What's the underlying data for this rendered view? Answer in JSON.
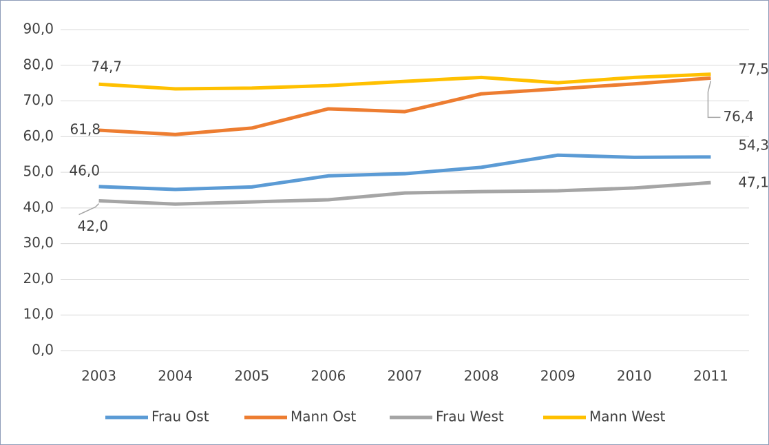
{
  "chart_data": {
    "type": "line",
    "categories": [
      "2003",
      "2004",
      "2005",
      "2006",
      "2007",
      "2008",
      "2009",
      "2010",
      "2011"
    ],
    "ylim": [
      0,
      90
    ],
    "yticks": [
      {
        "value": 0,
        "label": "0,0"
      },
      {
        "value": 10,
        "label": "10,0"
      },
      {
        "value": 20,
        "label": "20,0"
      },
      {
        "value": 30,
        "label": "30,0"
      },
      {
        "value": 40,
        "label": "40,0"
      },
      {
        "value": 50,
        "label": "50,0"
      },
      {
        "value": 60,
        "label": "60,0"
      },
      {
        "value": 70,
        "label": "70,0"
      },
      {
        "value": 80,
        "label": "80,0"
      },
      {
        "value": 90,
        "label": "90,0"
      }
    ],
    "grid": true,
    "legend": "bottom",
    "series": [
      {
        "name": "Frau Ost",
        "color": "#5b9bd5",
        "values": [
          46.0,
          45.2,
          45.9,
          49.0,
          49.6,
          51.4,
          54.8,
          54.2,
          54.3
        ],
        "value_labels": [
          "46,0",
          null,
          null,
          null,
          null,
          null,
          null,
          null,
          "54,3"
        ]
      },
      {
        "name": "Mann Ost",
        "color": "#ed7d31",
        "values": [
          61.8,
          60.6,
          62.4,
          67.8,
          67.0,
          72.0,
          73.4,
          74.8,
          76.4
        ],
        "value_labels": [
          "61,8",
          null,
          null,
          null,
          null,
          null,
          null,
          null,
          "76,4"
        ]
      },
      {
        "name": "Frau West",
        "color": "#a5a5a5",
        "values": [
          42.0,
          41.1,
          41.7,
          42.3,
          44.2,
          44.6,
          44.8,
          45.6,
          47.1
        ],
        "value_labels": [
          "42,0",
          null,
          null,
          null,
          null,
          null,
          null,
          null,
          "47,1"
        ]
      },
      {
        "name": "Mann West",
        "color": "#ffc000",
        "values": [
          74.7,
          73.4,
          73.6,
          74.3,
          75.5,
          76.6,
          75.1,
          76.6,
          77.5
        ],
        "value_labels": [
          "74,7",
          null,
          null,
          null,
          null,
          null,
          null,
          null,
          "77,5"
        ]
      }
    ]
  }
}
